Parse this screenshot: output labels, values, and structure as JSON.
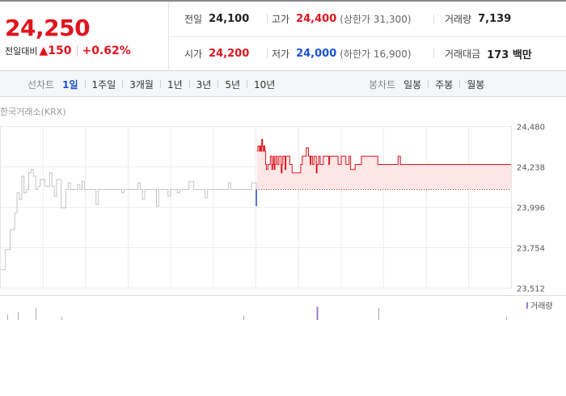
{
  "summary": {
    "current_price": "24,250",
    "change_label": "전일대비",
    "change_arrow": "▲",
    "change_amount": "150",
    "change_rate": "+0.62%",
    "stats": [
      {
        "label": "전일",
        "value": "24,100",
        "tone": "normal"
      },
      {
        "label": "고가",
        "value": "24,400",
        "tone": "red",
        "sub": "(상한가 31,300)"
      },
      {
        "label": "거래량",
        "value": "7,139",
        "tone": "normal"
      },
      {
        "label": "시가",
        "value": "24,200",
        "tone": "red"
      },
      {
        "label": "저가",
        "value": "24,000",
        "tone": "blue",
        "sub": "(하한가 16,900)"
      },
      {
        "label": "거래대금",
        "value": "173 백만",
        "tone": "normal"
      }
    ]
  },
  "tabs": {
    "line_title": "선차트",
    "line_tabs": [
      "1일",
      "1주일",
      "3개월",
      "1년",
      "3년",
      "5년",
      "10년"
    ],
    "line_active": 0,
    "candle_title": "봉차트",
    "candle_tabs": [
      "일봉",
      "주봉",
      "월봉"
    ]
  },
  "market_label": "한국거래소(KRX)",
  "colors": {
    "up": "#e0141d",
    "down": "#1b52d1",
    "prev_session": "#c4c4c4",
    "fill": "#fde6e6",
    "volume_bar": "#9b7fd0",
    "grid": "#eeeeee"
  },
  "chart_data": {
    "type": "line",
    "title": "",
    "xlabel": "",
    "ylabel": "",
    "ylim": [
      23512,
      24480
    ],
    "y_ticks": [
      "24,480",
      "24,238",
      "23,996",
      "23,754",
      "23,512"
    ],
    "y_tick_values": [
      24480,
      24238,
      23996,
      23754,
      23512
    ],
    "reference_line": 24100,
    "grid": true,
    "series": [
      {
        "role": "previous_session",
        "color": "#c4c4c4",
        "y": [
          23620,
          23620,
          23740,
          23740,
          23860,
          23860,
          23960,
          24080,
          24040,
          24180,
          24080,
          24100,
          24200,
          24220,
          24180,
          24100,
          24120,
          24160,
          24160,
          24120,
          24120,
          24200,
          24120,
          24060,
          24160,
          24160,
          23990,
          23990,
          24100,
          24140,
          24100,
          24100,
          24100,
          24130,
          24100,
          24150,
          24100,
          24100,
          24100,
          24100,
          24100,
          24010,
          24100,
          24100,
          24100,
          24100,
          24100,
          24100,
          24100,
          24100,
          24100,
          24100,
          24080,
          24100,
          24100,
          24100,
          24100,
          24100,
          24100,
          24140,
          24100,
          24040,
          24100,
          24100,
          24100,
          24100,
          24100,
          24000,
          24100,
          24100,
          24100,
          24100,
          24060,
          24100,
          24100,
          24100,
          24080,
          24100,
          24100,
          24100,
          24100,
          24150,
          24150,
          24100,
          24100,
          24100,
          24100,
          24100,
          24050,
          24100,
          24100,
          24100,
          24100,
          24100,
          24100,
          24100,
          24100,
          24100,
          24140,
          24100,
          24100,
          24100,
          24100,
          24100,
          24100,
          24100,
          24100,
          24100,
          24140,
          24140,
          24100
        ]
      },
      {
        "role": "today",
        "color": "#e0141d",
        "y": [
          24000,
          24330,
          24360,
          24360,
          24330,
          24360,
          24330,
          24400,
          24360,
          24330,
          24360,
          24330,
          24250,
          24220,
          24220,
          24250,
          24250,
          24250,
          24300,
          24300,
          24220,
          24250,
          24300,
          24220,
          24250,
          24300,
          24300,
          24250,
          24250,
          24300,
          24300,
          24300,
          24200,
          24250,
          24300,
          24300,
          24300,
          24220,
          24300,
          24300,
          24300,
          24300,
          24300,
          24250,
          24250,
          24250,
          24200,
          24200,
          24200,
          24200,
          24200,
          24200,
          24200,
          24200,
          24200,
          24200,
          24200,
          24250,
          24250,
          24300,
          24300,
          24300,
          24300,
          24300,
          24350,
          24350,
          24350,
          24300,
          24300,
          24250,
          24300,
          24300,
          24250,
          24250,
          24300,
          24300,
          24300,
          24200,
          24250,
          24250,
          24300,
          24300,
          24250,
          24250,
          24250,
          24250,
          24300,
          24300,
          24300,
          24300,
          24300,
          24300,
          24300,
          24250,
          24300,
          24300,
          24300,
          24300,
          24300,
          24300,
          24300,
          24300,
          24300,
          24300,
          24300,
          24250,
          24250,
          24250,
          24250,
          24300,
          24300,
          24300,
          24300,
          24300,
          24300,
          24250,
          24250,
          24250,
          24250,
          24300,
          24300,
          24220,
          24220,
          24220,
          24220,
          24220,
          24220,
          24250,
          24250,
          24250,
          24250,
          24250,
          24250,
          24250,
          24250,
          24300,
          24300,
          24300,
          24300,
          24300,
          24300,
          24300,
          24300,
          24300,
          24300,
          24300,
          24300,
          24300,
          24300,
          24300,
          24300,
          24300,
          24300,
          24300,
          24300,
          24300,
          24250,
          24250,
          24250,
          24250,
          24250,
          24250,
          24250,
          24250,
          24250,
          24250,
          24250,
          24250,
          24250,
          24250,
          24250,
          24250,
          24250,
          24250,
          24250,
          24250,
          24250,
          24250,
          24250,
          24250,
          24250,
          24250,
          24300,
          24300,
          24300,
          24250,
          24250,
          24250,
          24250,
          24250,
          24250,
          24250,
          24250,
          24250,
          24250,
          24250,
          24250,
          24250,
          24250,
          24250,
          24250,
          24250,
          24250,
          24250,
          24250,
          24250,
          24250,
          24250,
          24250,
          24250,
          24250,
          24250,
          24250,
          24250,
          24250,
          24250,
          24250,
          24250,
          24250,
          24250,
          24250,
          24250,
          24250,
          24250,
          24250,
          24250,
          24250,
          24250,
          24250,
          24250,
          24250,
          24250,
          24250,
          24250,
          24250,
          24250,
          24250,
          24250,
          24250,
          24250,
          24250,
          24250,
          24250,
          24250,
          24250,
          24250,
          24250,
          24250,
          24250,
          24250,
          24250,
          24250,
          24250,
          24250,
          24250,
          24250,
          24250,
          24250,
          24250,
          24250,
          24250,
          24250,
          24250,
          24250,
          24250,
          24250,
          24250,
          24250,
          24250,
          24250,
          24250,
          24250,
          24250,
          24250,
          24250,
          24250,
          24250,
          24250,
          24250,
          24250,
          24250,
          24250,
          24250,
          24250,
          24250,
          24250,
          24250,
          24250,
          24250,
          24250,
          24250,
          24250,
          24250,
          24250,
          24250,
          24250,
          24250,
          24250,
          24250,
          24250,
          24250,
          24250,
          24250,
          24250,
          24250,
          24250,
          24250,
          24250,
          24250,
          24250,
          24250,
          24250,
          24250,
          24250,
          24250,
          24250,
          24250,
          24250,
          24250,
          24250,
          24250,
          24250,
          24250,
          24250,
          24250,
          24250,
          24250,
          24250
        ]
      }
    ],
    "volume": {
      "label": "거래량",
      "bars": [
        {
          "pos": 0.015,
          "value": 25
        },
        {
          "pos": 0.035,
          "value": 35
        },
        {
          "pos": 0.07,
          "value": 55
        },
        {
          "pos": 0.12,
          "value": 15
        },
        {
          "pos": 0.476,
          "value": 20
        },
        {
          "pos": 0.62,
          "value": 60
        },
        {
          "pos": 0.74,
          "value": 55
        },
        {
          "pos": 0.99,
          "value": 15
        }
      ]
    }
  }
}
